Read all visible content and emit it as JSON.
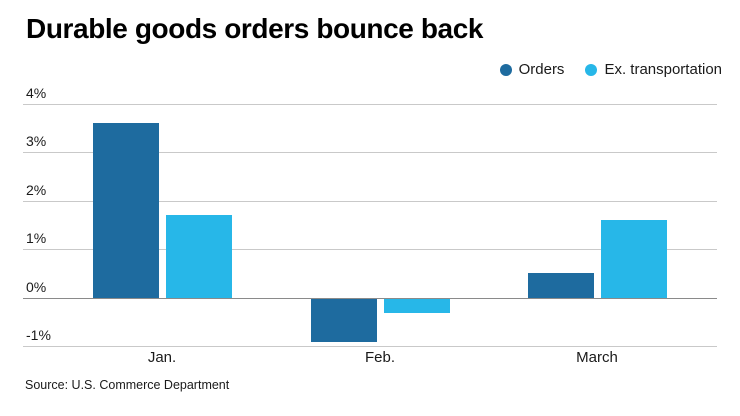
{
  "title": "Durable goods orders bounce back",
  "source": "Source: U.S. Commerce Department",
  "colors": {
    "orders": "#1e6b9f",
    "ex_transportation": "#27b7e8",
    "grid": "#c9c9c9",
    "zero_line": "#8a8a8a",
    "text": "#1a1a1a",
    "title": "#000000",
    "background": "#ffffff"
  },
  "legend": {
    "items": [
      {
        "label": "Orders",
        "color": "#1e6b9f"
      },
      {
        "label": "Ex. transportation",
        "color": "#27b7e8"
      }
    ]
  },
  "chart_data": {
    "type": "bar",
    "title": "Durable goods orders bounce back",
    "categories": [
      "Jan.",
      "Feb.",
      "March"
    ],
    "series": [
      {
        "name": "Orders",
        "color": "#1e6b9f",
        "values": [
          3.6,
          -0.9,
          0.5
        ]
      },
      {
        "name": "Ex. transportation",
        "color": "#27b7e8",
        "values": [
          1.7,
          -0.3,
          1.6
        ]
      }
    ],
    "xlabel": "",
    "ylabel": "",
    "ylim": [
      -1,
      4
    ],
    "y_tick_step": 1,
    "y_tick_labels": [
      "4%",
      "3%",
      "2%",
      "1%",
      "0%",
      "-1%"
    ],
    "y_unit": "%",
    "grid": true,
    "legend_position": "top-right",
    "source": "Source: U.S. Commerce Department"
  }
}
